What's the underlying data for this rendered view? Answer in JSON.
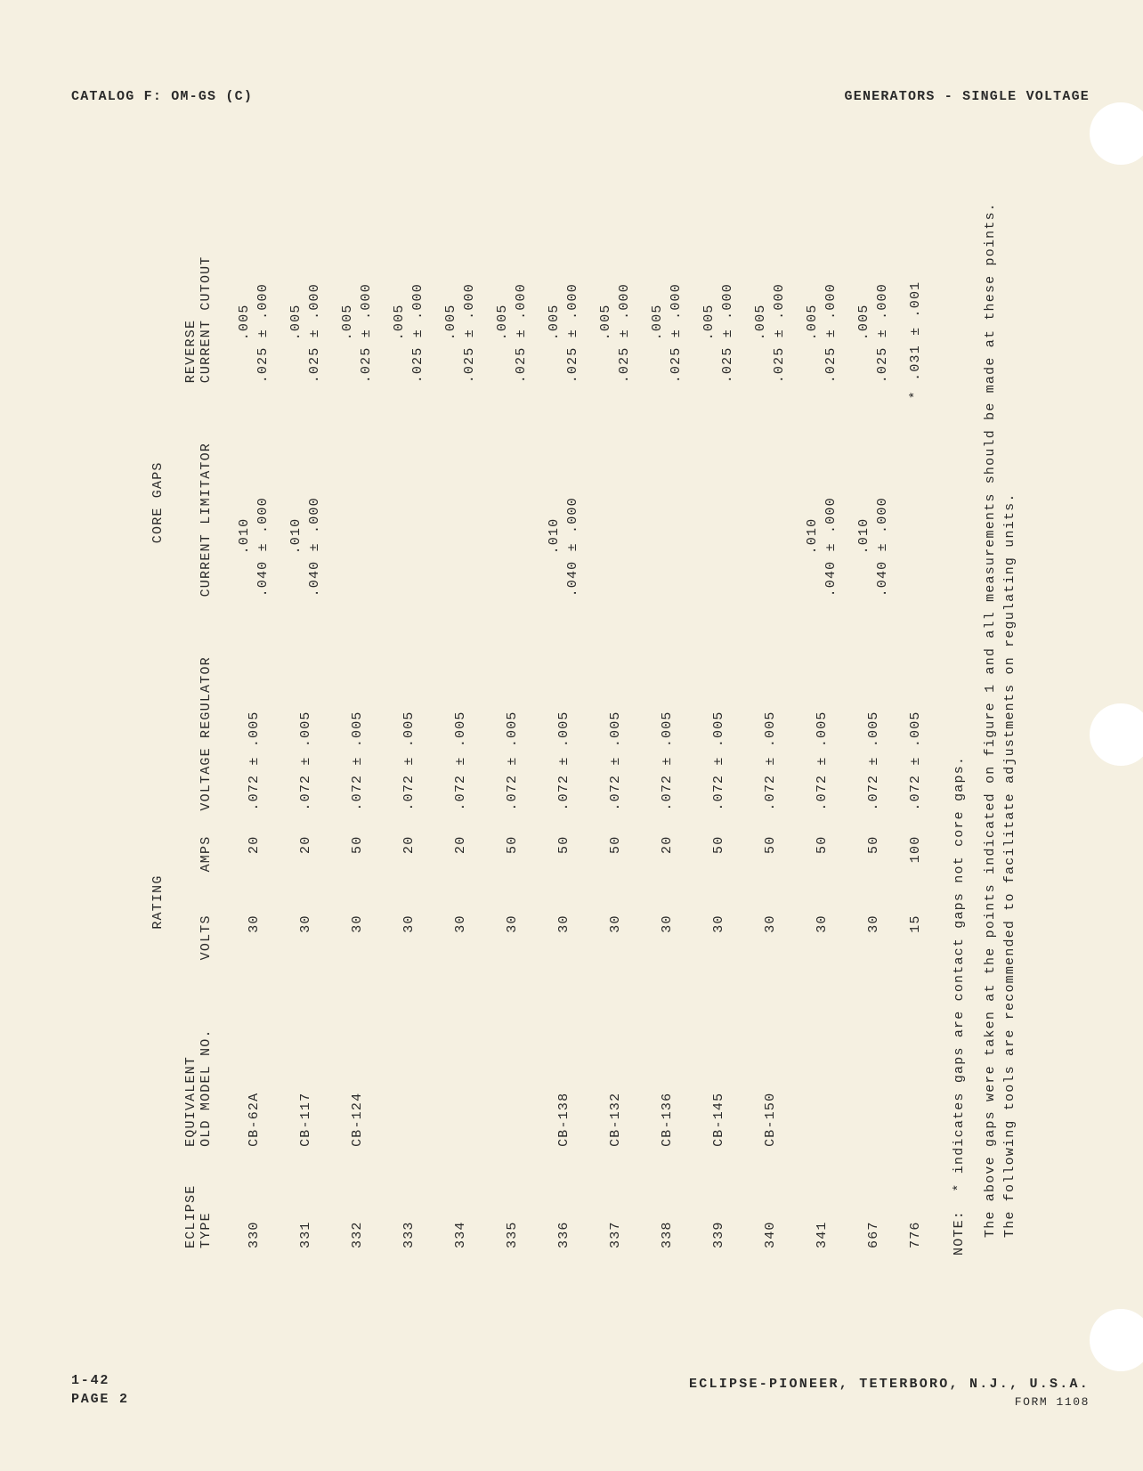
{
  "header": {
    "catalog": "CATALOG F: OM-GS (C)",
    "section": "GENERATORS - SINGLE VOLTAGE"
  },
  "table": {
    "header_groups": {
      "rating": "RATING",
      "core_gaps": "CORE GAPS"
    },
    "columns": {
      "eclipse_type": "ECLIPSE\nTYPE",
      "equiv_model": "EQUIVALENT\nOLD MODEL NO.",
      "volts": "VOLTS",
      "amps": "AMPS",
      "voltage_regulator": "VOLTAGE REGULATOR",
      "current_limitator": "CURRENT LIMITATOR",
      "reverse_current_cutout": "REVERSE\nCURRENT CUTOUT"
    },
    "rows": [
      {
        "type": "330",
        "model": "CB-62A",
        "volts": "30",
        "amps": "20",
        "vr": ".072 ± .005",
        "cl": {
          "line1": ".010",
          "line2": ".040 ± .000"
        },
        "rcc": {
          "line1": ".005",
          "line2": ".025 ± .000"
        }
      },
      {
        "type": "331",
        "model": "CB-117",
        "volts": "30",
        "amps": "20",
        "vr": ".072 ± .005",
        "cl": {
          "line1": ".010",
          "line2": ".040 ± .000"
        },
        "rcc": {
          "line1": ".005",
          "line2": ".025 ± .000"
        }
      },
      {
        "type": "332",
        "model": "CB-124",
        "volts": "30",
        "amps": "50",
        "vr": ".072 ± .005",
        "cl": null,
        "rcc": {
          "line1": ".005",
          "line2": ".025 ± .000"
        }
      },
      {
        "type": "333",
        "model": "",
        "volts": "30",
        "amps": "20",
        "vr": ".072 ± .005",
        "cl": null,
        "rcc": {
          "line1": ".005",
          "line2": ".025 ± .000"
        }
      },
      {
        "type": "334",
        "model": "",
        "volts": "30",
        "amps": "20",
        "vr": ".072 ± .005",
        "cl": null,
        "rcc": {
          "line1": ".005",
          "line2": ".025 ± .000"
        }
      },
      {
        "type": "335",
        "model": "",
        "volts": "30",
        "amps": "50",
        "vr": ".072 ± .005",
        "cl": null,
        "rcc": {
          "line1": ".005",
          "line2": ".025 ± .000"
        }
      },
      {
        "type": "336",
        "model": "CB-138",
        "volts": "30",
        "amps": "50",
        "vr": ".072 ± .005",
        "cl": {
          "line1": ".010",
          "line2": ".040 ± .000"
        },
        "rcc": {
          "line1": ".005",
          "line2": ".025 ± .000"
        }
      },
      {
        "type": "337",
        "model": "CB-132",
        "volts": "30",
        "amps": "50",
        "vr": ".072 ± .005",
        "cl": null,
        "rcc": {
          "line1": ".005",
          "line2": ".025 ± .000"
        }
      },
      {
        "type": "338",
        "model": "CB-136",
        "volts": "30",
        "amps": "20",
        "vr": ".072 ± .005",
        "cl": null,
        "rcc": {
          "line1": ".005",
          "line2": ".025 ± .000"
        }
      },
      {
        "type": "339",
        "model": "CB-145",
        "volts": "30",
        "amps": "50",
        "vr": ".072 ± .005",
        "cl": null,
        "rcc": {
          "line1": ".005",
          "line2": ".025 ± .000"
        }
      },
      {
        "type": "340",
        "model": "CB-150",
        "volts": "30",
        "amps": "50",
        "vr": ".072 ± .005",
        "cl": null,
        "rcc": {
          "line1": ".005",
          "line2": ".025 ± .000"
        }
      },
      {
        "type": "341",
        "model": "",
        "volts": "30",
        "amps": "50",
        "vr": ".072 ± .005",
        "cl": {
          "line1": ".010",
          "line2": ".040 ± .000"
        },
        "rcc": {
          "line1": ".005",
          "line2": ".025 ± .000"
        }
      },
      {
        "type": "667",
        "model": "",
        "volts": "30",
        "amps": "50",
        "vr": ".072 ± .005",
        "cl": {
          "line1": ".010",
          "line2": ".040 ± .000"
        },
        "rcc": {
          "line1": ".005",
          "line2": ".025 ± .000"
        }
      },
      {
        "type": "776",
        "model": "",
        "volts": "15",
        "amps": "100",
        "vr": ".072 ± .005",
        "cl": null,
        "rcc": {
          "line1": "",
          "line2": ".031 ± .001",
          "star": true
        }
      }
    ]
  },
  "note": {
    "label": "NOTE:",
    "text": "* indicates gaps are contact gaps not core gaps.",
    "para": "The above gaps were taken at the points indicated on figure 1 and all measurements should be made at these points.  The following tools are recommended to facilitate adjustments on regulating units."
  },
  "footer": {
    "date": "1-42",
    "page": "PAGE 2",
    "company": "ECLIPSE-PIONEER, TETERBORO, N.J., U.S.A.",
    "form": "FORM 1108"
  },
  "style": {
    "background": "#f5f0e1",
    "text_color": "#2a2a2a",
    "hole_color": "#ffffff"
  }
}
